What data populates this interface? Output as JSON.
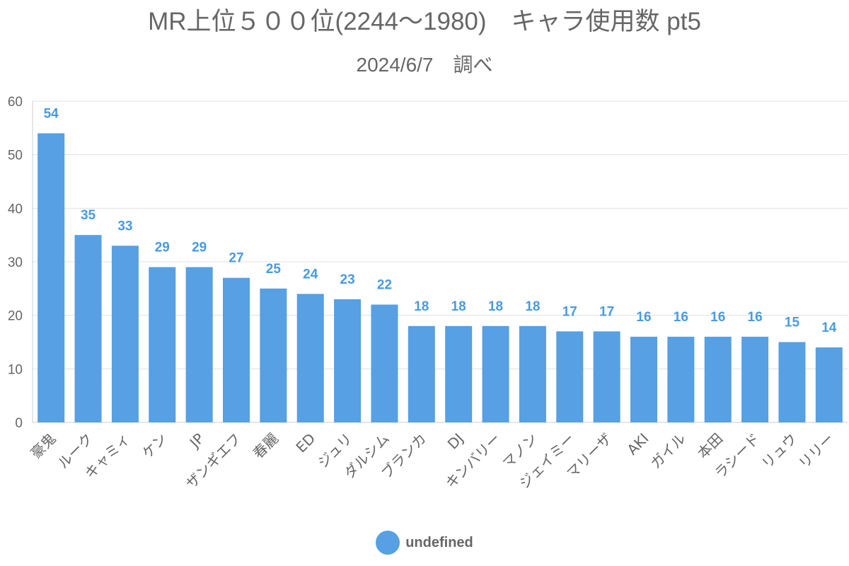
{
  "chart_data": {
    "type": "bar",
    "title": "MR上位５００位(2244～1980)　キャラ使用数 pt5",
    "subtitle": "2024/6/7　調べ",
    "categories": [
      "豪鬼",
      "ルーク",
      "キャミィ",
      "ケン",
      "JP",
      "ザンギエフ",
      "春麗",
      "ED",
      "ジュリ",
      "ダルシム",
      "ブランカ",
      "DJ",
      "キンバリー",
      "マノン",
      "ジェイミー",
      "マリーザ",
      "AKI",
      "ガイル",
      "本田",
      "ラシード",
      "リュウ",
      "リリー"
    ],
    "values": [
      54,
      35,
      33,
      29,
      29,
      27,
      25,
      24,
      23,
      22,
      18,
      18,
      18,
      18,
      17,
      17,
      16,
      16,
      16,
      16,
      15,
      14
    ],
    "ylim": [
      0,
      60
    ],
    "yticks": [
      0,
      10,
      20,
      30,
      40,
      50,
      60
    ],
    "grid": true,
    "data_labels": true,
    "legend": {
      "label": "undefined",
      "placement": "bottom"
    },
    "colors": {
      "bar": "#56a0e3",
      "data_label": "#4a9ae0",
      "text": "#666666",
      "grid": "#e0e0e0"
    }
  }
}
